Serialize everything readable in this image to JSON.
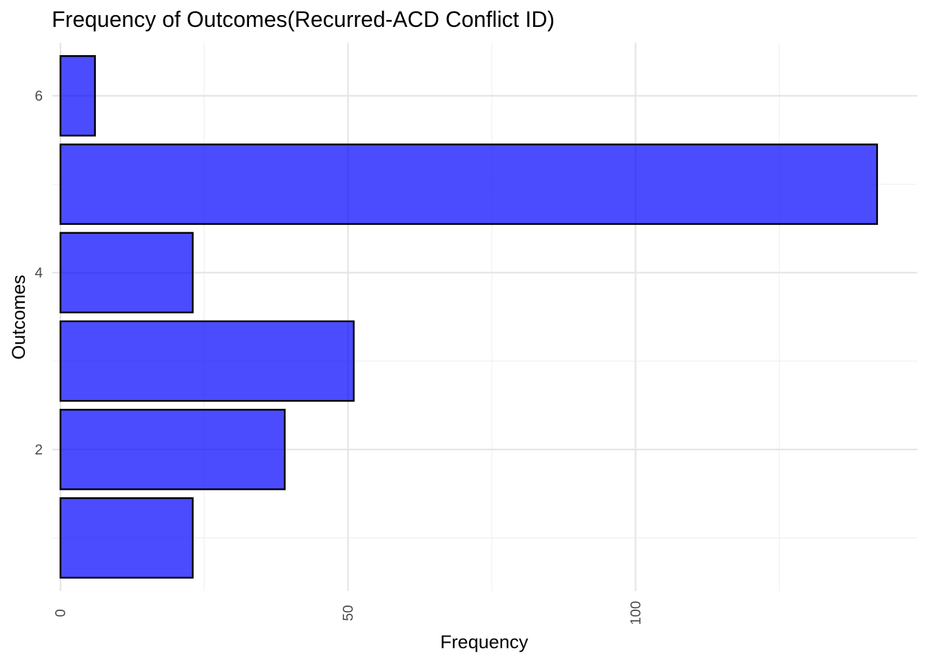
{
  "chart_data": {
    "type": "bar",
    "orientation": "horizontal",
    "title": "Frequency of Outcomes(Recurred-ACD Conflict ID)",
    "xlabel": "Frequency",
    "ylabel": "Outcomes",
    "categories": [
      1,
      2,
      3,
      4,
      5,
      6
    ],
    "values": [
      23,
      39,
      51,
      23,
      142,
      6
    ],
    "xlim": [
      -1.4,
      149
    ],
    "ylim": [
      0.4,
      6.6
    ],
    "x_ticks": [
      0,
      50,
      100
    ],
    "x_minor_ticks": [
      25,
      75,
      125
    ],
    "y_ticks": [
      2,
      4,
      6
    ],
    "y_minor_ticks": [
      1,
      3,
      5
    ],
    "grid": true,
    "legend": "none",
    "colors": {
      "bar_fill": "#0000FF",
      "bar_fill_opacity": 0.7,
      "bar_stroke": "#000000",
      "grid_major": "#e5e5e5",
      "grid_minor": "#f0f0f0"
    }
  }
}
